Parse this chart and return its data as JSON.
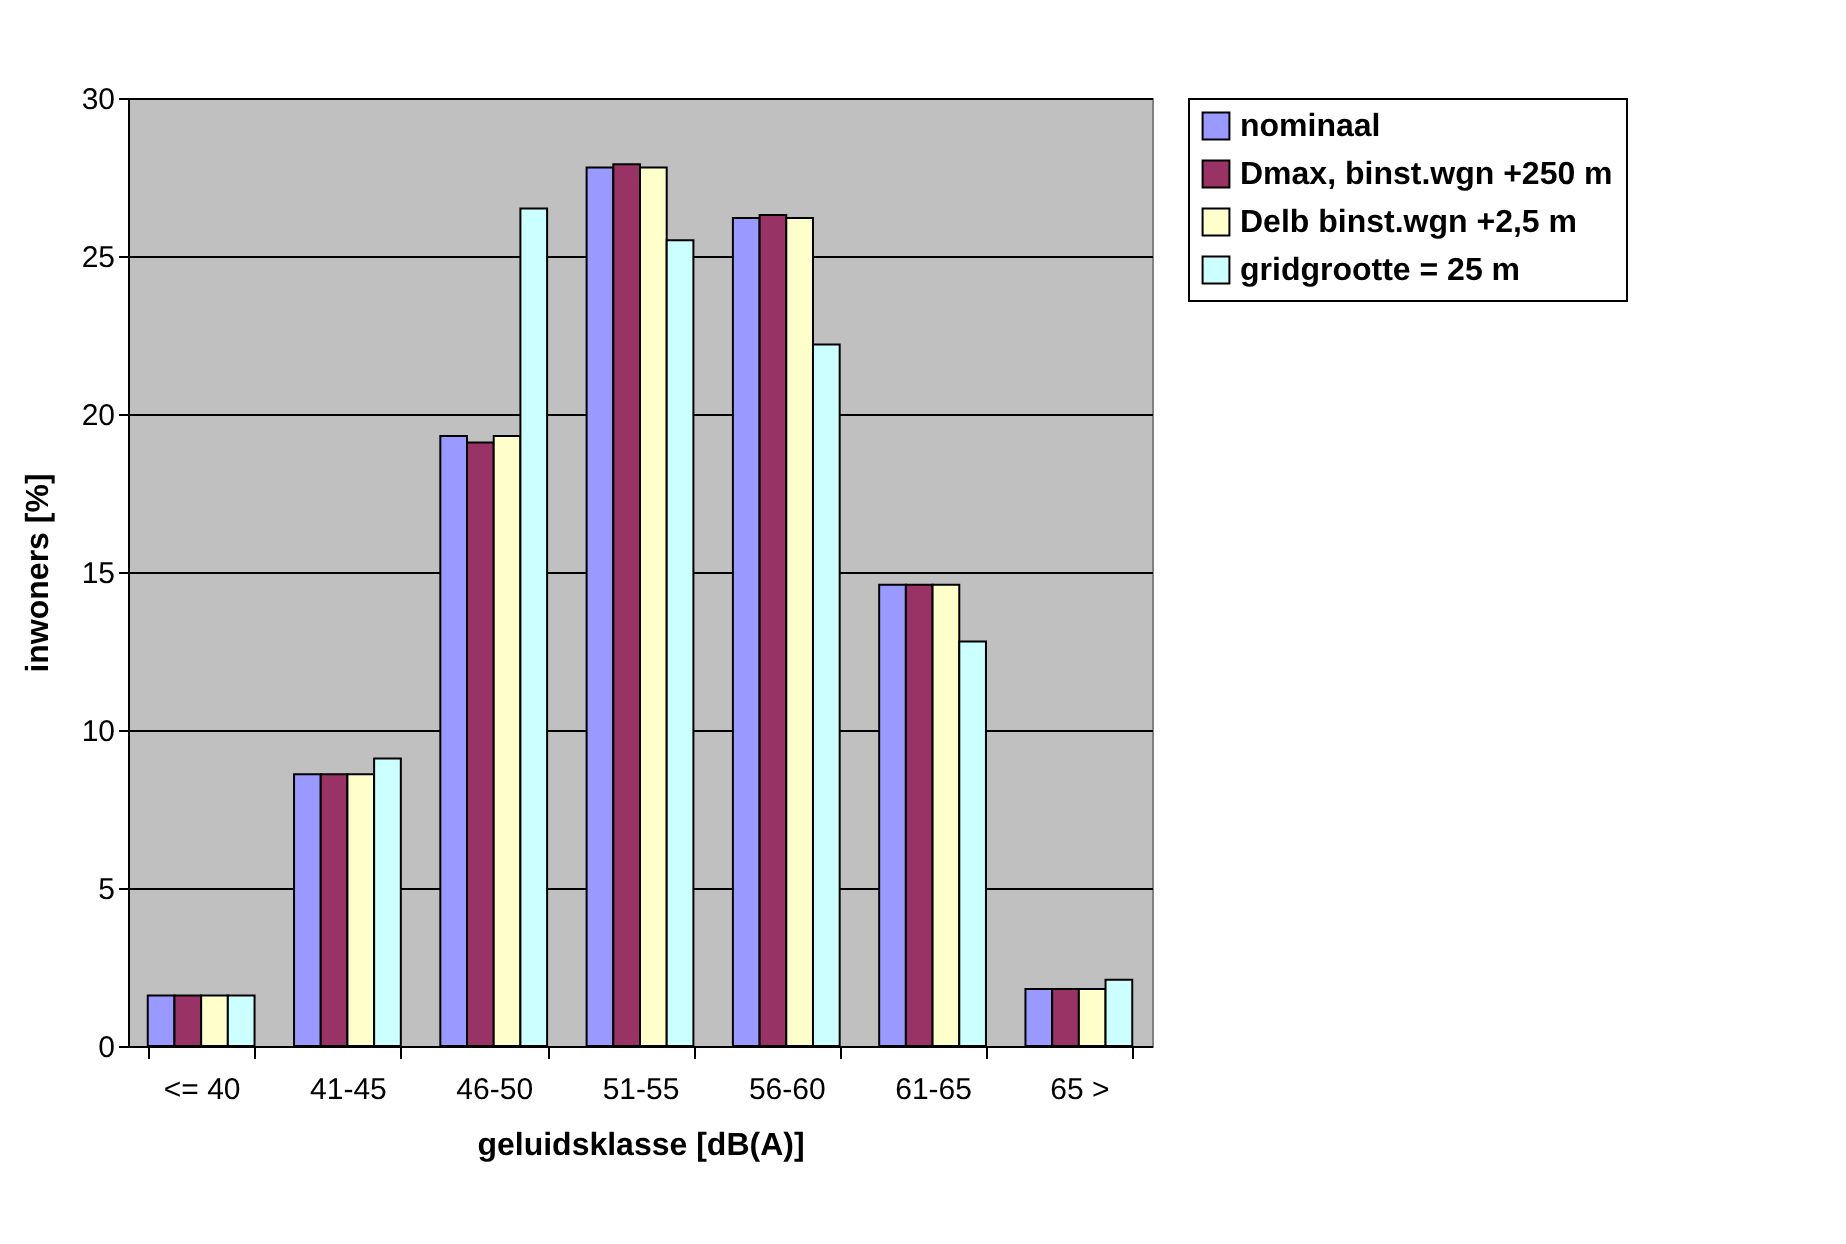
{
  "chart_data": {
    "type": "bar",
    "xlabel": "geluidsklasse [dB(A)]",
    "ylabel": "inwoners [%]",
    "categories": [
      "<= 40",
      "41-45",
      "46-50",
      "51-55",
      "56-60",
      "61-65",
      "65 >"
    ],
    "series": [
      {
        "name": "nominaal",
        "color": "#9999ff",
        "values": [
          1.6,
          8.6,
          19.3,
          27.8,
          26.2,
          14.6,
          1.8
        ]
      },
      {
        "name": "Dmax, binst.wgn +250 m",
        "color": "#993366",
        "values": [
          1.6,
          8.6,
          19.1,
          27.9,
          26.3,
          14.6,
          1.8
        ]
      },
      {
        "name": "Delb binst.wgn +2,5 m",
        "color": "#ffffcc",
        "values": [
          1.6,
          8.6,
          19.3,
          27.8,
          26.2,
          14.6,
          1.8
        ]
      },
      {
        "name": "gridgrootte = 25 m",
        "color": "#ccffff",
        "values": [
          1.6,
          9.1,
          26.5,
          25.5,
          22.2,
          12.8,
          2.1
        ]
      }
    ],
    "ylim": [
      0,
      30
    ],
    "yticks": [
      0,
      5,
      10,
      15,
      20,
      25,
      30
    ],
    "grid": "y",
    "legend": "right"
  }
}
